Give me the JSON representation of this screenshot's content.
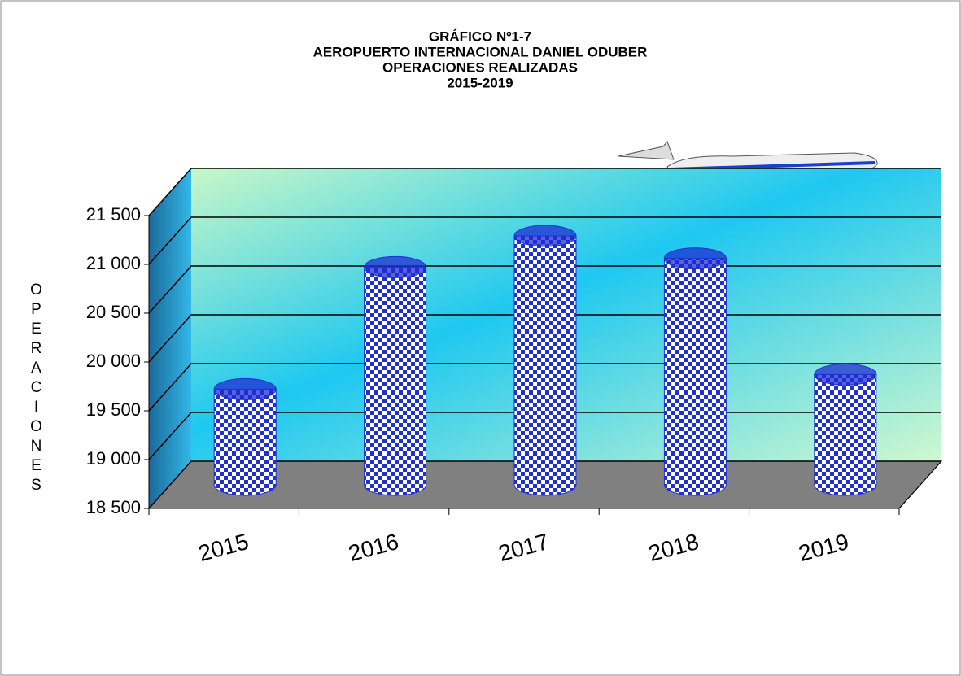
{
  "chart_data": {
    "type": "bar",
    "title": [
      "GRÁFICO Nº1-7",
      "AEROPUERTO  INTERNACIONAL  DANIEL  ODUBER",
      "OPERACIONES  REALIZADAS",
      "2015-2019"
    ],
    "y_label": "OPERACIONES",
    "categories": [
      "2015",
      "2016",
      "2017",
      "2018",
      "2019"
    ],
    "values": [
      19480,
      20730,
      21050,
      20820,
      19630
    ],
    "color": "#1f2fd0",
    "ylim": [
      18500,
      21500
    ],
    "yticks": [
      {
        "value": 18500,
        "label": "18 500"
      },
      {
        "value": 19000,
        "label": "19 000"
      },
      {
        "value": 19500,
        "label": "19 500"
      },
      {
        "value": 20000,
        "label": "20 000"
      },
      {
        "value": 20500,
        "label": "20 500"
      },
      {
        "value": 21000,
        "label": "21 000"
      },
      {
        "value": 21500,
        "label": "21 500"
      }
    ],
    "grid": true
  }
}
